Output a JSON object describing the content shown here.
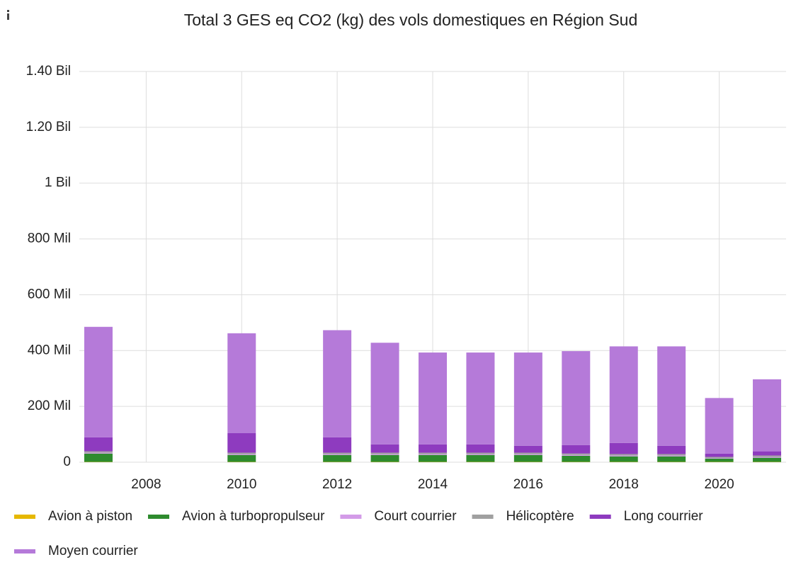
{
  "chart_data": {
    "type": "stacked_bar",
    "title": "Total 3 GES eq CO2 (kg) des vols domestiques en Région Sud",
    "x": [
      2007,
      2010,
      2012,
      2013,
      2014,
      2015,
      2016,
      2017,
      2018,
      2019,
      2020,
      2021
    ],
    "xlim": [
      2006.6,
      2021.4
    ],
    "xticks": [
      2008,
      2010,
      2012,
      2014,
      2016,
      2018,
      2020
    ],
    "ylim": [
      0,
      1400000000
    ],
    "yticks": [
      0,
      {
        "value": 200000000,
        "label": "200 Mil"
      },
      {
        "value": 400000000,
        "label": "400 Mil"
      },
      {
        "value": 600000000,
        "label": "600 Mil"
      },
      {
        "value": 800000000,
        "label": "800 Mil"
      },
      {
        "value": 1000000000,
        "label": "1 Bil"
      },
      {
        "value": 1200000000,
        "label": "1.20 Bil"
      },
      {
        "value": 1400000000,
        "label": "1.40 Bil"
      }
    ],
    "grid": true,
    "legend": "bottom",
    "series": [
      {
        "name": "Avion à piston",
        "color": "#e6b800",
        "values": [
          1000000,
          1000000,
          1000000,
          1000000,
          1000000,
          1000000,
          1000000,
          1000000,
          1000000,
          1000000,
          1000000,
          1000000
        ]
      },
      {
        "name": "Avion à turbopropulseur",
        "color": "#2e8b2e",
        "values": [
          30000000,
          25000000,
          25000000,
          25000000,
          25000000,
          25000000,
          25000000,
          22000000,
          20000000,
          20000000,
          12000000,
          15000000
        ]
      },
      {
        "name": "Court courrier",
        "color": "#d39be8",
        "values": [
          3000000,
          3000000,
          3000000,
          3000000,
          3000000,
          3000000,
          3000000,
          3000000,
          3000000,
          3000000,
          2000000,
          3000000
        ]
      },
      {
        "name": "Hélicoptère",
        "color": "#a0a0a0",
        "values": [
          5000000,
          5000000,
          5000000,
          5000000,
          5000000,
          5000000,
          5000000,
          5000000,
          5000000,
          5000000,
          4000000,
          5000000
        ]
      },
      {
        "name": "Long courrier",
        "color": "#8e3bbf",
        "values": [
          50000000,
          70000000,
          55000000,
          30000000,
          30000000,
          30000000,
          25000000,
          30000000,
          40000000,
          30000000,
          12000000,
          15000000
        ]
      },
      {
        "name": "Moyen courrier",
        "color": "#b57ad9",
        "values": [
          396000000,
          358000000,
          384000000,
          364000000,
          329000000,
          329000000,
          334000000,
          337000000,
          346000000,
          356000000,
          199000000,
          258000000
        ]
      }
    ]
  }
}
